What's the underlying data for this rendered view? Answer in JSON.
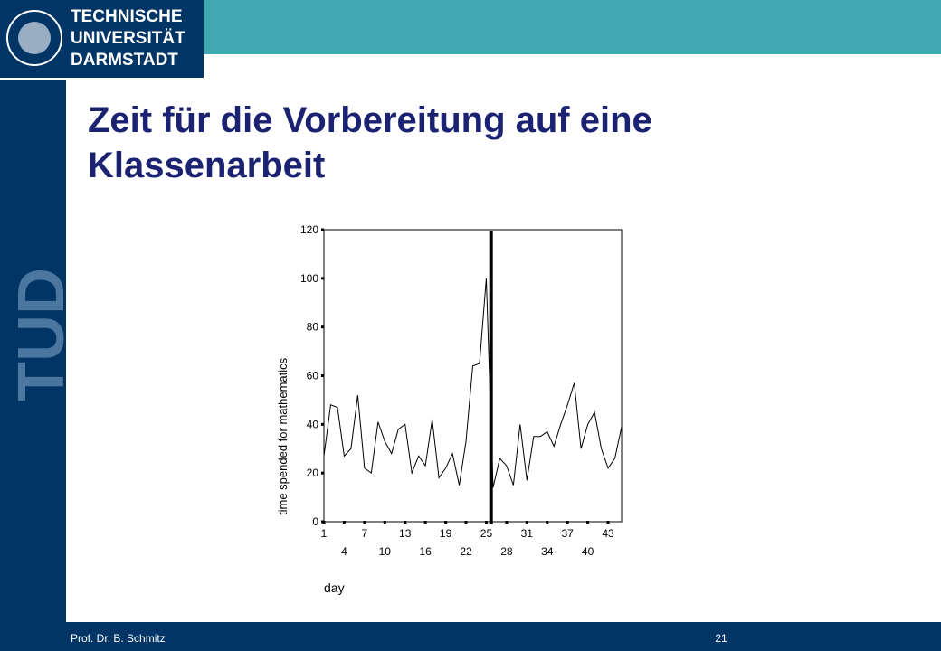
{
  "header": {
    "logo_lines": [
      "TECHNISCHE",
      "UNIVERSITÄT",
      "DARMSTADT"
    ],
    "side_mark": "TUD",
    "title": "Zeit für die Vorbereitung auf eine Klassenarbeit"
  },
  "footer": {
    "author": "Prof. Dr. B. Schmitz",
    "page": "21"
  },
  "chart_data": {
    "type": "line",
    "x_label": "day",
    "y_label": "time spended for mathematics",
    "x": [
      1,
      2,
      3,
      4,
      5,
      6,
      7,
      8,
      9,
      10,
      11,
      12,
      13,
      14,
      15,
      16,
      17,
      18,
      19,
      20,
      21,
      22,
      23,
      24,
      25,
      26,
      27,
      28,
      29,
      30,
      31,
      32,
      33,
      34,
      35,
      36,
      37,
      38,
      39,
      40,
      41,
      42,
      43,
      44,
      45
    ],
    "values": [
      27,
      48,
      47,
      27,
      30,
      52,
      22,
      20,
      41,
      33,
      28,
      38,
      40,
      20,
      27,
      23,
      42,
      18,
      22,
      28,
      15,
      33,
      64,
      65,
      100,
      14,
      26,
      23,
      15,
      40,
      17,
      35,
      35,
      37,
      31,
      40,
      48,
      57,
      30,
      40,
      45,
      30,
      22,
      26,
      39
    ],
    "color": "#000000",
    "reference_x": 25.7,
    "xlim": [
      1,
      45
    ],
    "xticks": [
      1,
      4,
      7,
      10,
      13,
      16,
      19,
      22,
      25,
      28,
      31,
      34,
      37,
      40,
      43
    ],
    "ylim": [
      0,
      120
    ],
    "yticks": [
      0,
      20,
      40,
      60,
      80,
      100,
      120
    ]
  }
}
